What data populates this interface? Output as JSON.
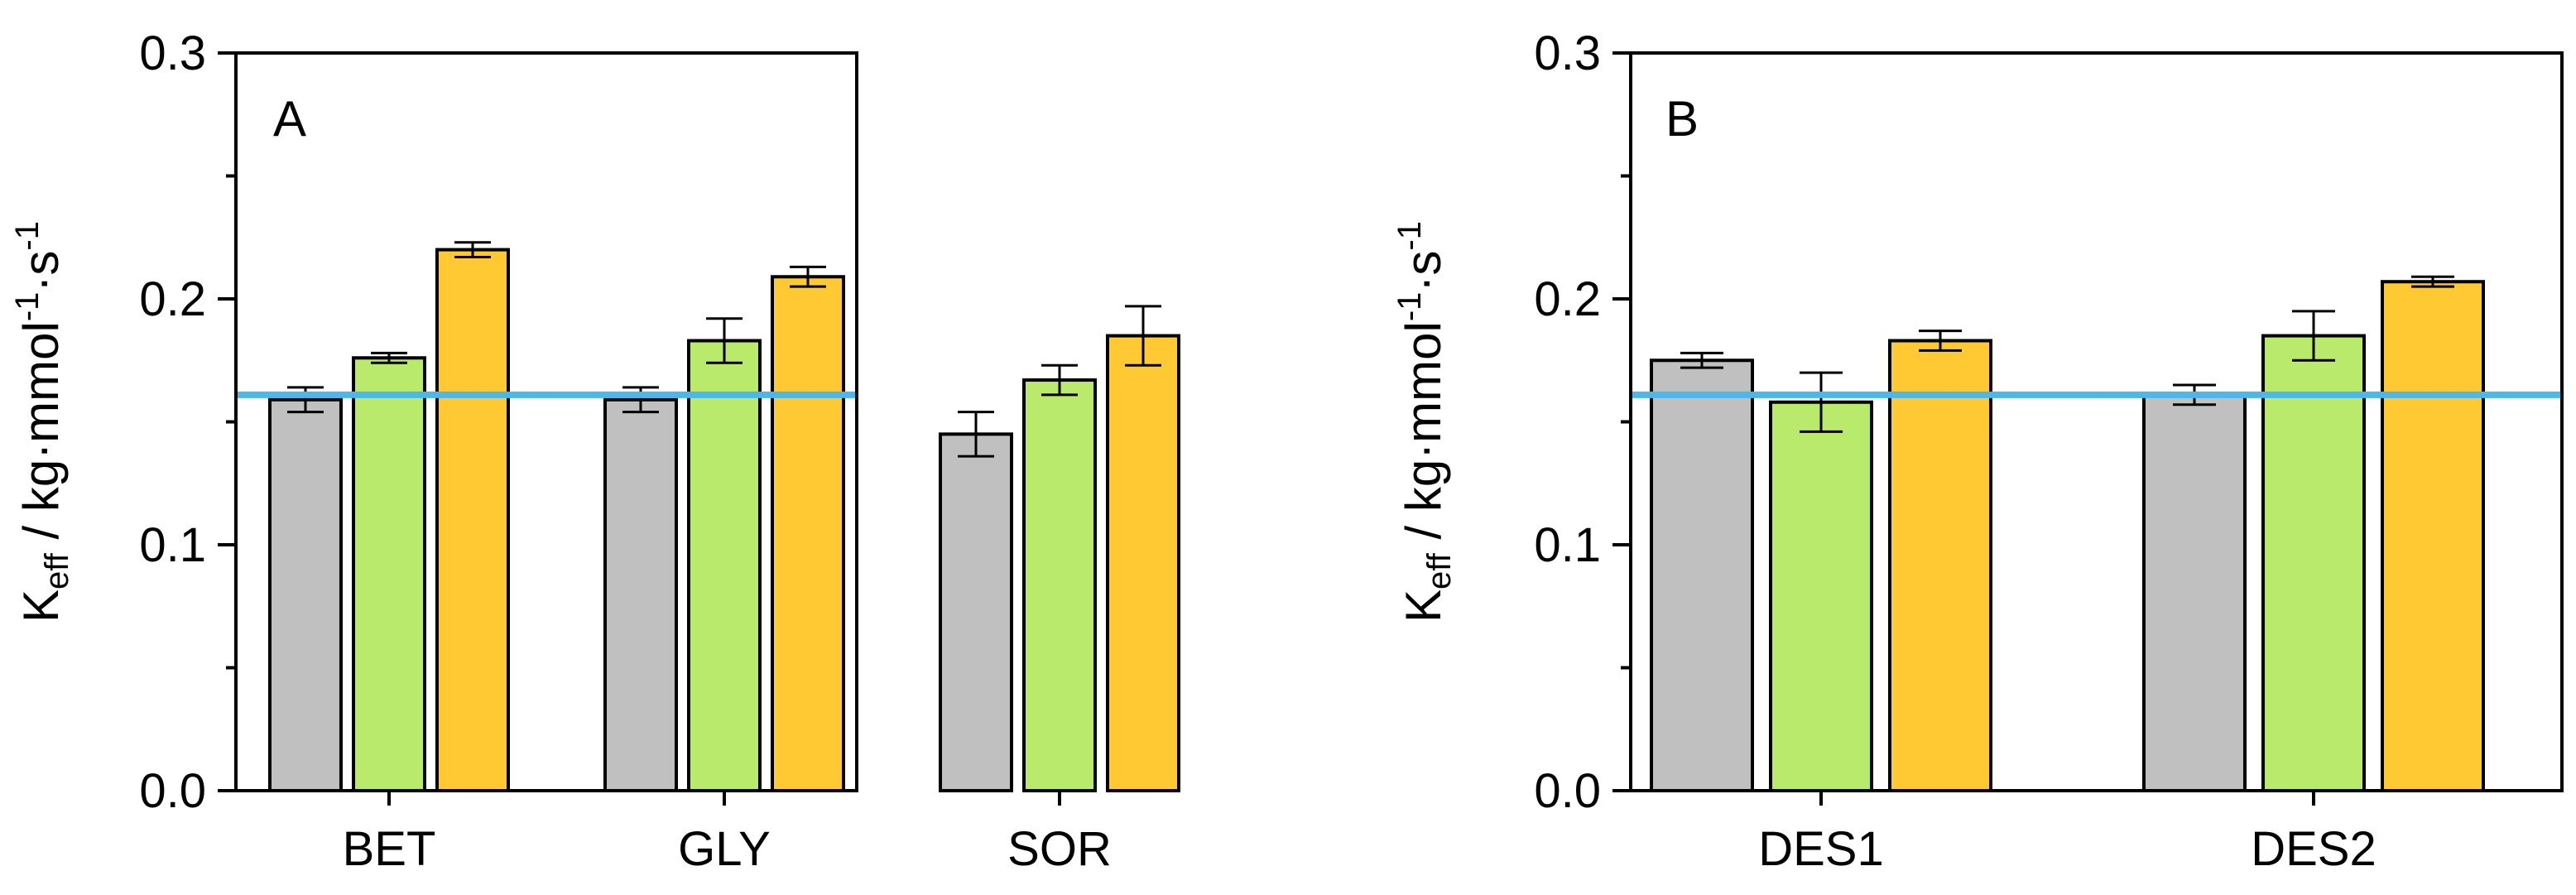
{
  "chart_data": [
    {
      "type": "bar",
      "panel_label": "A",
      "categories": [
        "BET",
        "GLY",
        "SOR"
      ],
      "series": [
        {
          "name": "gray",
          "color": "#c0c0c0",
          "values": [
            0.159,
            0.159,
            0.145
          ],
          "errors": [
            0.005,
            0.005,
            0.009
          ]
        },
        {
          "name": "green",
          "color": "#b9ea6b",
          "values": [
            0.176,
            0.183,
            0.167
          ],
          "errors": [
            0.002,
            0.009,
            0.006
          ]
        },
        {
          "name": "orange",
          "color": "#ffc933",
          "values": [
            0.22,
            0.209,
            0.185
          ],
          "errors": [
            0.003,
            0.004,
            0.012
          ]
        }
      ],
      "reference_line": {
        "value": 0.161,
        "color": "#4db8e8"
      },
      "ylim": [
        0.0,
        0.3
      ],
      "yticks": [
        "0.0",
        "0.1",
        "0.2",
        "0.3"
      ],
      "ylabel": {
        "main": "K",
        "sub": "eff",
        "unit_pre": " / kg·mmol",
        "sup1": "-1",
        "unit_mid": "·s",
        "sup2": "-1"
      },
      "xlabel": ""
    },
    {
      "type": "bar",
      "panel_label": "B",
      "categories": [
        "DES1",
        "DES2"
      ],
      "series": [
        {
          "name": "gray",
          "color": "#c0c0c0",
          "values": [
            0.175,
            0.161
          ],
          "errors": [
            0.003,
            0.004
          ]
        },
        {
          "name": "green",
          "color": "#b9ea6b",
          "values": [
            0.158,
            0.185
          ],
          "errors": [
            0.012,
            0.01
          ]
        },
        {
          "name": "orange",
          "color": "#ffc933",
          "values": [
            0.183,
            0.207
          ],
          "errors": [
            0.004,
            0.002
          ]
        }
      ],
      "reference_line": {
        "value": 0.161,
        "color": "#4db8e8"
      },
      "ylim": [
        0.0,
        0.3
      ],
      "yticks": [
        "0.0",
        "0.1",
        "0.2",
        "0.3"
      ],
      "ylabel": {
        "main": "K",
        "sub": "eff",
        "unit_pre": " / kg·mmol",
        "sup1": "-1",
        "unit_mid": "·s",
        "sup2": "-1"
      },
      "xlabel": ""
    }
  ]
}
